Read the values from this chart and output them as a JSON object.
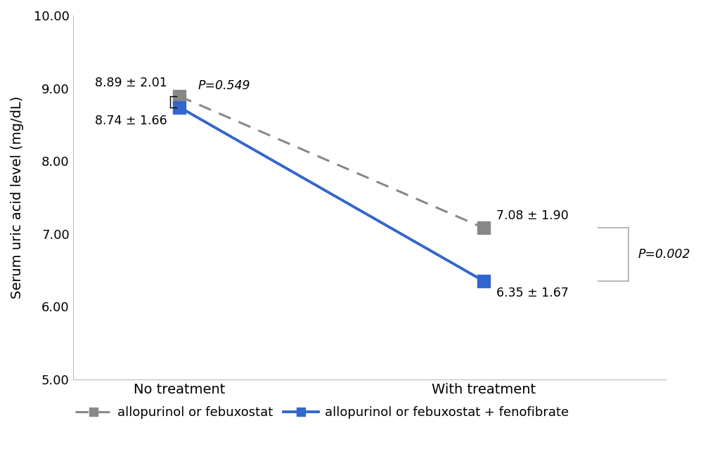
{
  "x_labels": [
    "No treatment",
    "With treatment"
  ],
  "x_positions": [
    1,
    3
  ],
  "series1_name": "allopurinol or febuxostat",
  "series1_values": [
    8.89,
    7.08
  ],
  "series1_color": "#888888",
  "series1_label1": "8.89 ± 2.01",
  "series1_label2": "7.08 ± 1.90",
  "series2_name": "allopurinol or febuxostat + fenofibrate",
  "series2_values": [
    8.74,
    6.35
  ],
  "series2_color": "#3366cc",
  "series2_label1": "8.74 ± 1.66",
  "series2_label2": "6.35 ± 1.67",
  "ylabel": "Serum uric acid level (mg/dL)",
  "ylim": [
    5.0,
    10.0
  ],
  "yticks": [
    5.0,
    6.0,
    7.0,
    8.0,
    9.0,
    10.0
  ],
  "p_value_top": "P=0.549",
  "p_value_right": "P=0.002",
  "marker_size": 13,
  "background_color": "#ffffff"
}
